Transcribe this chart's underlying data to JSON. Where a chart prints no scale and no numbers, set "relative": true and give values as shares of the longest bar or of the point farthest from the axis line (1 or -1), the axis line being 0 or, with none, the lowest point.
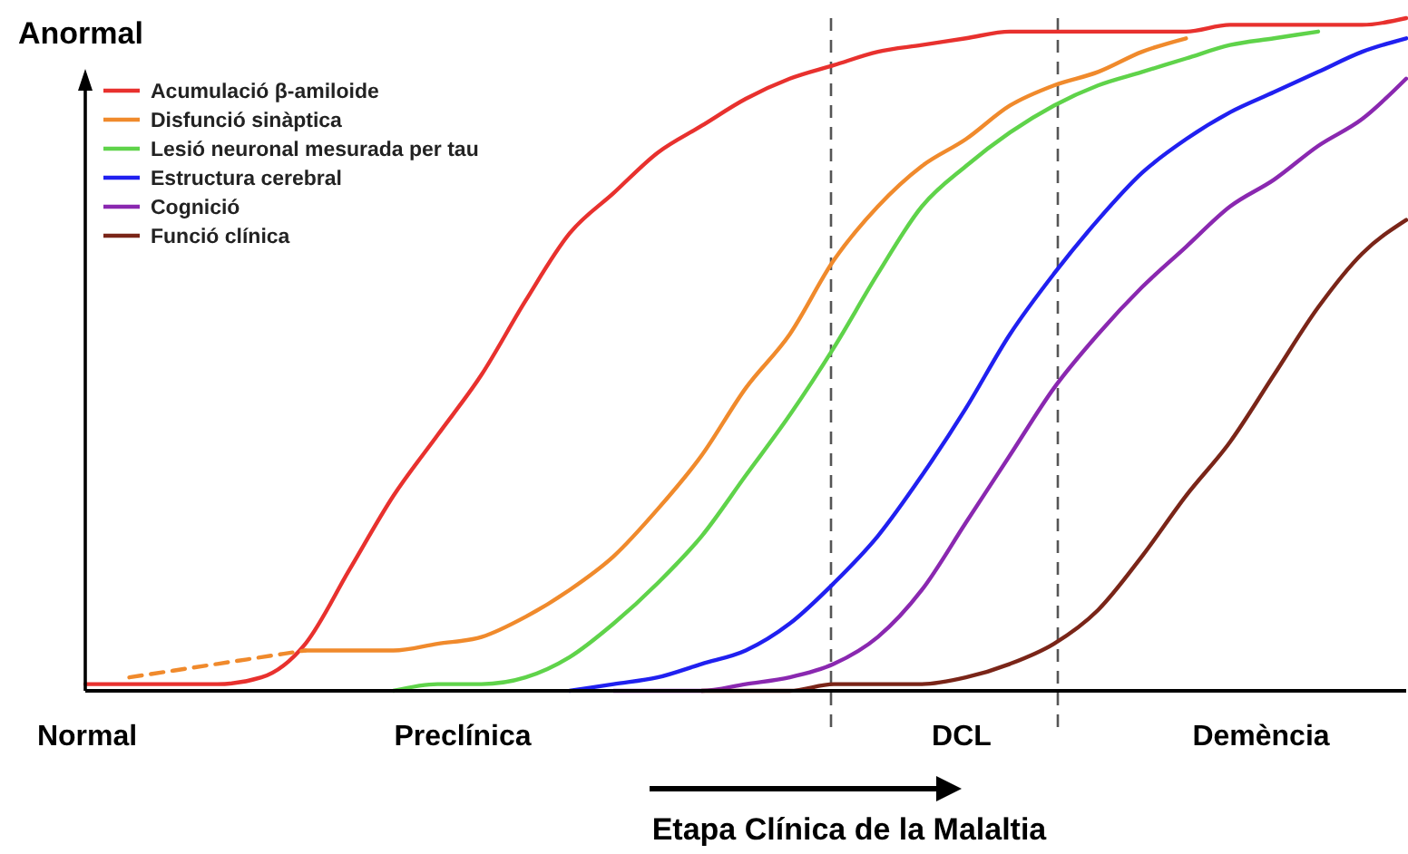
{
  "chart_data": {
    "type": "line",
    "relative": true,
    "ylabel": "Anormal",
    "xlabel": "Etapa Clínica de la Malaltia",
    "legend": "top left",
    "marker": "none",
    "line_style": "solid",
    "categories": [
      null,
      null,
      null,
      null,
      null,
      null,
      null,
      null,
      null,
      null,
      null,
      null,
      null,
      null,
      null,
      null,
      null,
      null,
      null,
      null,
      null,
      null,
      null,
      null,
      null,
      null,
      null,
      null,
      null,
      null,
      null
    ],
    "series": [
      {
        "name": "Acumulació β-amiloide",
        "color": "#e8312e",
        "values": [
          0.01,
          0.01,
          0.01,
          0.01,
          0.02,
          0.07,
          0.18,
          0.29,
          0.38,
          0.47,
          0.58,
          0.68,
          0.74,
          0.8,
          0.84,
          0.88,
          0.91,
          0.93,
          0.95,
          0.96,
          0.97,
          0.98,
          0.98,
          0.98,
          0.98,
          0.98,
          0.99,
          0.99,
          0.99,
          0.99,
          1.0
        ]
      },
      {
        "name": "Disfunció sinàptica",
        "color": "#f08a2c",
        "values": [
          null,
          null,
          null,
          null,
          null,
          0.06,
          0.06,
          0.06,
          0.07,
          0.08,
          0.11,
          0.15,
          0.2,
          0.27,
          0.35,
          0.45,
          0.53,
          0.64,
          0.72,
          0.78,
          0.82,
          0.87,
          0.9,
          0.92,
          0.95,
          0.97,
          null,
          null,
          null,
          null,
          null
        ]
      },
      {
        "color": "#f08a2c",
        "line_style": "dashed",
        "values": [
          null,
          0.02,
          0.03,
          0.04,
          0.05,
          0.06,
          null,
          null,
          null,
          null,
          null,
          null,
          null,
          null,
          null,
          null,
          null,
          null,
          null,
          null,
          null,
          null,
          null,
          null,
          null,
          null,
          null,
          null,
          null,
          null,
          null
        ]
      },
      {
        "name": "Lesió neuronal mesurada per tau",
        "color": "#5fd34a",
        "values": [
          null,
          null,
          null,
          null,
          null,
          null,
          null,
          0.0,
          0.01,
          0.01,
          0.02,
          0.05,
          0.1,
          0.16,
          0.23,
          0.32,
          0.41,
          0.51,
          0.62,
          0.72,
          0.78,
          0.83,
          0.87,
          0.9,
          0.92,
          0.94,
          0.96,
          0.97,
          0.98,
          null,
          null
        ]
      },
      {
        "name": "Estructura cerebral",
        "color": "#2020f0",
        "values": [
          null,
          null,
          null,
          null,
          null,
          null,
          null,
          null,
          null,
          null,
          null,
          0.0,
          0.01,
          0.02,
          0.04,
          0.06,
          0.1,
          0.16,
          0.23,
          0.32,
          0.42,
          0.53,
          0.62,
          0.7,
          0.77,
          0.82,
          0.86,
          0.89,
          0.92,
          0.95,
          0.97
        ]
      },
      {
        "name": "Cognició",
        "color": "#8a28b0",
        "values": [
          null,
          null,
          null,
          null,
          null,
          null,
          null,
          null,
          null,
          null,
          null,
          null,
          0.0,
          0.0,
          0.0,
          0.01,
          0.02,
          0.04,
          0.08,
          0.15,
          0.25,
          0.35,
          0.45,
          0.53,
          0.6,
          0.66,
          0.72,
          0.76,
          0.81,
          0.85,
          0.91
        ]
      },
      {
        "name": "Funció clínica",
        "color": "#7a2518",
        "values": [
          null,
          null,
          null,
          null,
          null,
          null,
          null,
          null,
          null,
          null,
          null,
          null,
          null,
          null,
          0.0,
          0.0,
          0.0,
          0.01,
          0.01,
          0.01,
          0.02,
          0.04,
          0.07,
          0.12,
          0.2,
          0.29,
          0.37,
          0.47,
          0.57,
          0.65,
          0.7
        ]
      }
    ],
    "annotations": [
      "Normal",
      "Preclínica",
      "DCL",
      "Demència"
    ]
  }
}
